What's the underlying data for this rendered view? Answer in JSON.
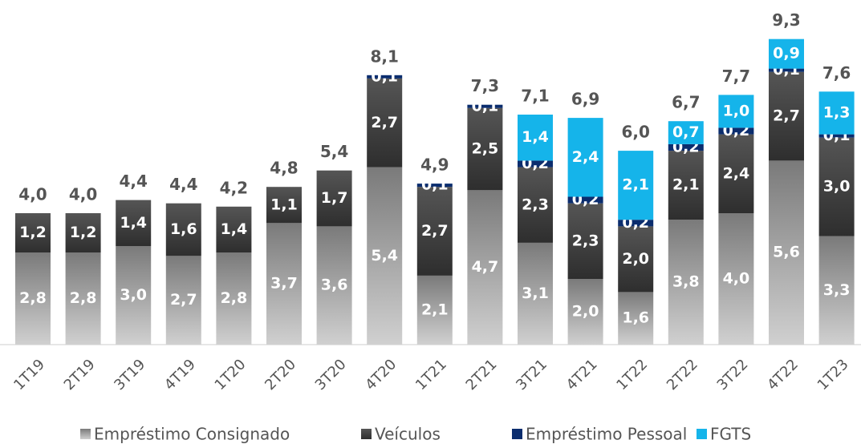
{
  "chart_data": {
    "type": "stacked_bar",
    "categories": [
      "1T19",
      "2T19",
      "3T19",
      "4T19",
      "1T20",
      "2T20",
      "3T20",
      "4T20",
      "1T21",
      "2T21",
      "3T21",
      "4T21",
      "1T22",
      "2T22",
      "3T22",
      "4T22",
      "1T23"
    ],
    "series": [
      {
        "name": "Empréstimo Consignado",
        "color": "#9a9a9a",
        "values": [
          2.8,
          2.8,
          3.0,
          2.7,
          2.8,
          3.7,
          3.6,
          5.4,
          2.1,
          4.7,
          3.1,
          2.0,
          1.6,
          3.8,
          4.0,
          5.6,
          3.3
        ],
        "value_labels": [
          "2,8",
          "2,8",
          "3,0",
          "2,7",
          "2,8",
          "3,7",
          "3,6",
          "5,4",
          "2,1",
          "4,7",
          "3,1",
          "2,0",
          "1,6",
          "3,8",
          "4,0",
          "5,6",
          "3,3"
        ]
      },
      {
        "name": "Veículos",
        "color": "#3d3d3d",
        "values": [
          1.2,
          1.2,
          1.4,
          1.6,
          1.4,
          1.1,
          1.7,
          2.7,
          2.7,
          2.5,
          2.3,
          2.3,
          2.0,
          2.1,
          2.4,
          2.7,
          3.0
        ],
        "value_labels": [
          "1,2",
          "1,2",
          "1,4",
          "1,6",
          "1,4",
          "1,1",
          "1,7",
          "2,7",
          "2,7",
          "2,5",
          "2,3",
          "2,3",
          "2,0",
          "2,1",
          "2,4",
          "2,7",
          "3,0"
        ]
      },
      {
        "name": "Empréstimo Pessoal",
        "color": "#0b2d6e",
        "values": [
          null,
          null,
          null,
          null,
          null,
          null,
          null,
          0.1,
          0.1,
          0.1,
          0.2,
          0.2,
          0.2,
          0.2,
          0.2,
          0.1,
          0.1
        ],
        "value_labels": [
          null,
          null,
          null,
          null,
          null,
          null,
          null,
          "0,1",
          "0,1",
          "0,1",
          "0,2",
          "0,2",
          "0,2",
          "0,2",
          "0,2",
          "0,1",
          "0,1"
        ]
      },
      {
        "name": "FGTS",
        "color": "#15b4ea",
        "values": [
          null,
          null,
          null,
          null,
          null,
          null,
          null,
          null,
          null,
          null,
          1.4,
          2.4,
          2.1,
          0.7,
          1.0,
          0.9,
          1.3
        ],
        "value_labels": [
          null,
          null,
          null,
          null,
          null,
          null,
          null,
          null,
          null,
          null,
          "1,4",
          "2,4",
          "2,1",
          "0,7",
          "1,0",
          "0,9",
          "1,3"
        ]
      }
    ],
    "total_labels": [
      "4,0",
      "4,0",
      "4,4",
      "4,4",
      "4,2",
      "4,8",
      "5,4",
      "8,1",
      "4,9",
      "7,3",
      "7,1",
      "6,9",
      "6,0",
      "6,7",
      "7,7",
      "9,3",
      "7,6"
    ],
    "ylim": [
      0,
      10
    ]
  }
}
